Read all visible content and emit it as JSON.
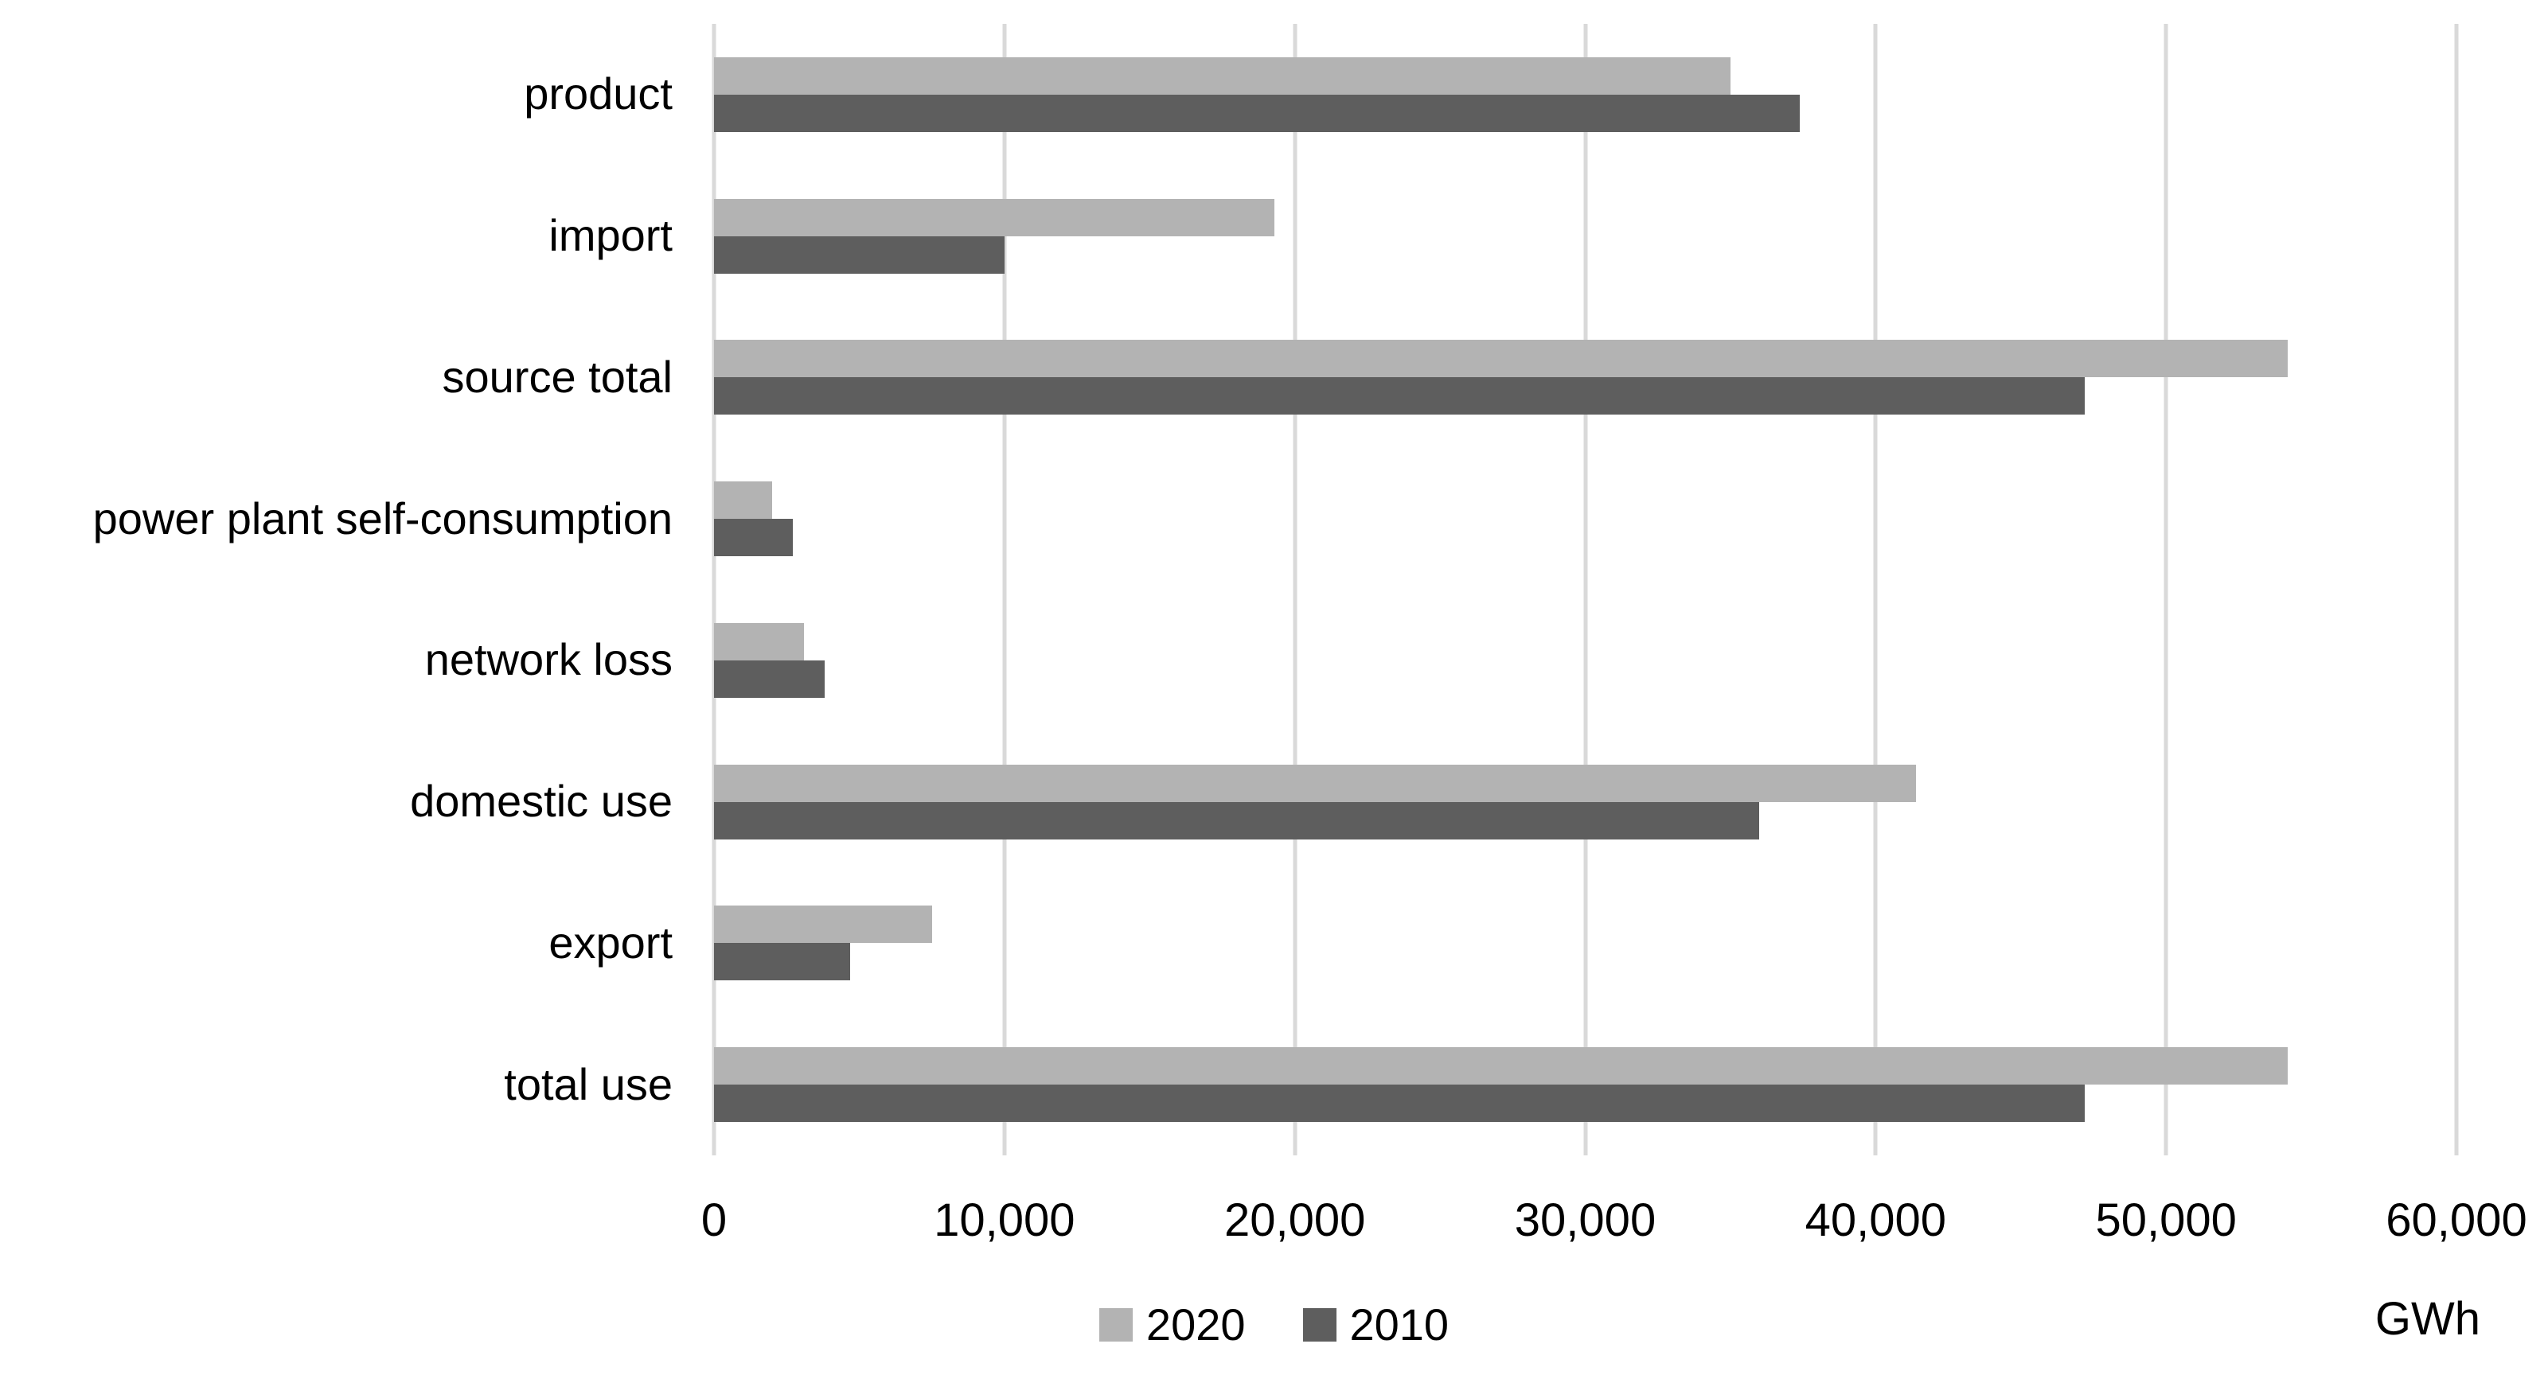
{
  "chart_data": {
    "type": "bar",
    "orientation": "horizontal",
    "title": "",
    "categories": [
      "product",
      "import",
      "source total",
      "power plant self-consumption",
      "network loss",
      "domestic use",
      "export",
      "total use"
    ],
    "series": [
      {
        "name": "2020",
        "color": "#b3b3b3",
        "values": [
          35000,
          19300,
          54200,
          2000,
          3100,
          41400,
          7500,
          54200
        ]
      },
      {
        "name": "2010",
        "color": "#5e5e5e",
        "values": [
          37400,
          10000,
          47200,
          2700,
          3800,
          36000,
          4700,
          47200
        ]
      }
    ],
    "x_axis": {
      "min": 0,
      "max": 60000,
      "tick_interval": 10000,
      "tick_labels": [
        "0",
        "10,000",
        "20,000",
        "30,000",
        "40,000",
        "50,000",
        "60,000"
      ]
    },
    "ylabel": "",
    "xlabel": "GWh",
    "unit_label": "GWh",
    "grid": "vertical",
    "gridline_color": "#d9d9d9",
    "background_color": "#ffffff",
    "text_color": "#000000",
    "legend": {
      "position": "bottom-center",
      "items": [
        "2020",
        "2010"
      ]
    }
  }
}
